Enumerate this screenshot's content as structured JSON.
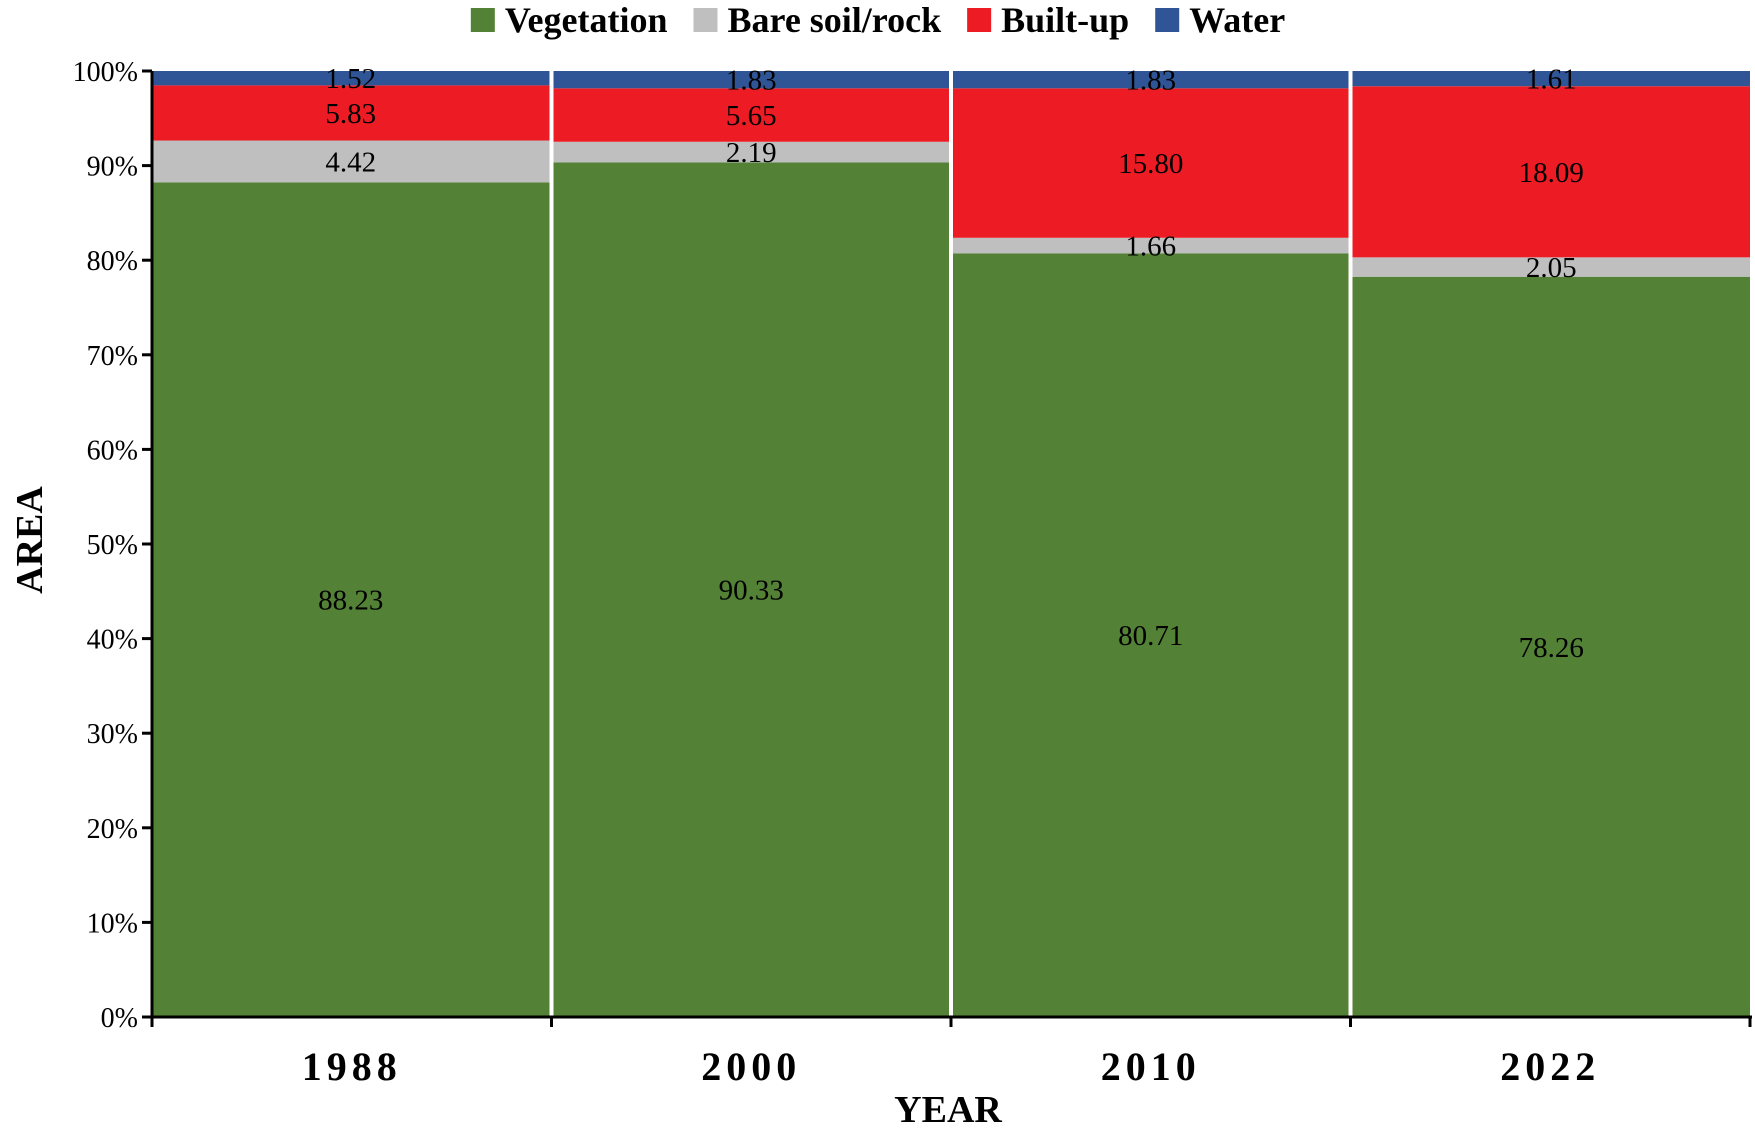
{
  "chart_data": {
    "type": "bar",
    "stacked": true,
    "normalized_percent": true,
    "title": "",
    "xlabel": "YEAR",
    "ylabel": "AREA",
    "ylim": [
      0,
      100
    ],
    "yticks": [
      "0%",
      "10%",
      "20%",
      "30%",
      "40%",
      "50%",
      "60%",
      "70%",
      "80%",
      "90%",
      "100%"
    ],
    "grid": false,
    "legend_position": "top",
    "categories": [
      "1988",
      "2000",
      "2010",
      "2022"
    ],
    "series": [
      {
        "name": "Vegetation",
        "color": "#538135",
        "values": [
          88.23,
          90.33,
          80.71,
          78.26
        ],
        "labels": [
          "88.23",
          "90.33",
          "80.71",
          "78.26"
        ]
      },
      {
        "name": "Bare soil/rock",
        "color": "#BFBFBF",
        "values": [
          4.42,
          2.19,
          1.66,
          2.05
        ],
        "labels": [
          "4.42",
          "2.19",
          "1.66",
          "2.05"
        ]
      },
      {
        "name": "Built-up",
        "color": "#ED1C24",
        "values": [
          5.83,
          5.65,
          15.8,
          18.09
        ],
        "labels": [
          "5.83",
          "5.65",
          "15.80",
          "18.09"
        ]
      },
      {
        "name": "Water",
        "color": "#2F5597",
        "values": [
          1.52,
          1.83,
          1.83,
          1.61
        ],
        "labels": [
          "1.52",
          "1.83",
          "1.83",
          "1.61"
        ]
      }
    ]
  }
}
